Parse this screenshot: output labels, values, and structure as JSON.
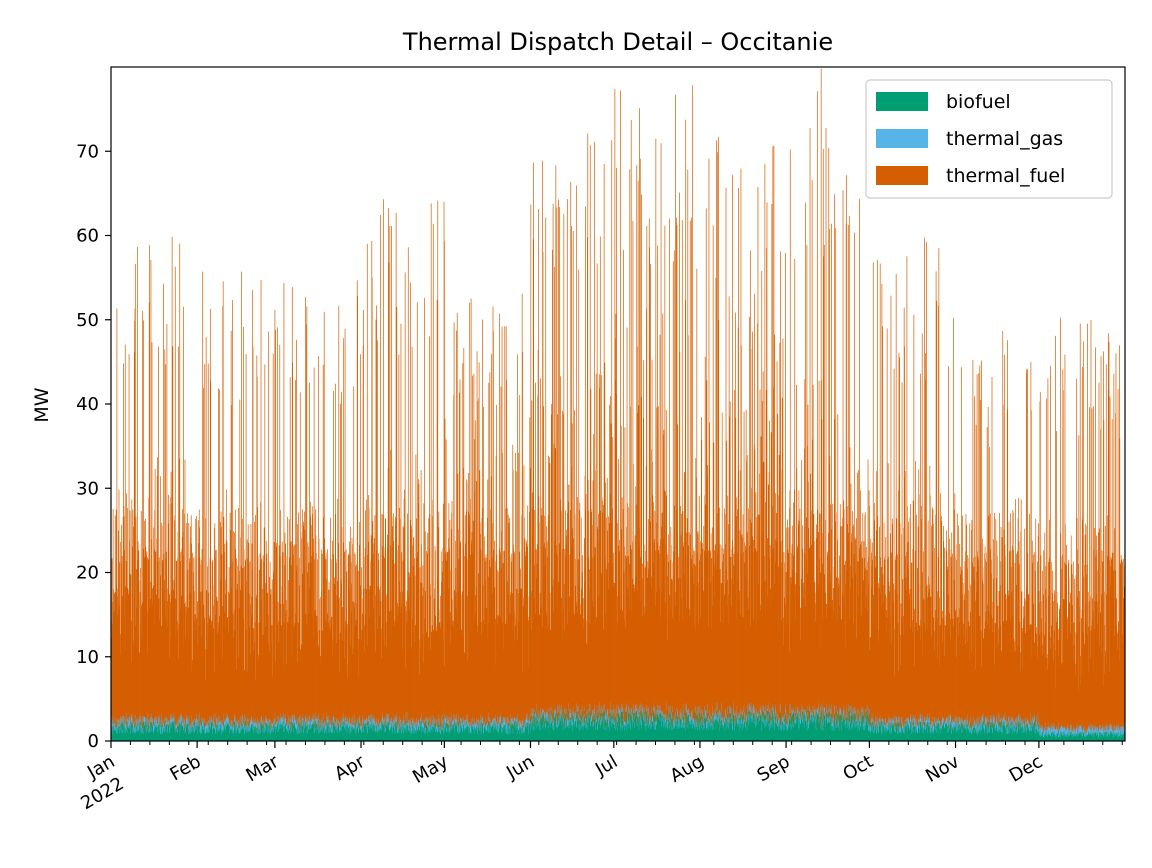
{
  "chart_data": {
    "type": "bar",
    "title": "Thermal Dispatch Detail – Occitanie",
    "xlabel": "",
    "ylabel": "MW",
    "x_start": "2022-01-01",
    "x_end": "2022-12-31",
    "xlim": [
      "2022-01-01",
      "2022-12-31"
    ],
    "ylim": [
      0,
      80
    ],
    "yticks": [
      0,
      10,
      20,
      30,
      40,
      50,
      60,
      70
    ],
    "xticks": [
      {
        "date": "2022-01-01",
        "label": "Jan",
        "label2": "2022"
      },
      {
        "date": "2022-02-01",
        "label": "Feb"
      },
      {
        "date": "2022-03-01",
        "label": "Mar"
      },
      {
        "date": "2022-04-01",
        "label": "Apr"
      },
      {
        "date": "2022-05-01",
        "label": "May"
      },
      {
        "date": "2022-06-01",
        "label": "Jun"
      },
      {
        "date": "2022-07-01",
        "label": "Jul"
      },
      {
        "date": "2022-08-01",
        "label": "Aug"
      },
      {
        "date": "2022-09-01",
        "label": "Sep"
      },
      {
        "date": "2022-10-01",
        "label": "Oct"
      },
      {
        "date": "2022-11-01",
        "label": "Nov"
      },
      {
        "date": "2022-12-01",
        "label": "Dec"
      }
    ],
    "grid": false,
    "stacked": true,
    "legend": {
      "position": "top-right",
      "entries": [
        "biofuel",
        "thermal_gas",
        "thermal_fuel"
      ]
    },
    "series": [
      {
        "name": "biofuel",
        "color": "#009E73",
        "monthly_typical_level": [
          2,
          2,
          2,
          2,
          2,
          3,
          3,
          3,
          3,
          2,
          2,
          1
        ],
        "monthly_peak_level": [
          3,
          3,
          3,
          3,
          3,
          4,
          4,
          4,
          4,
          3,
          3,
          2
        ]
      },
      {
        "name": "thermal_gas",
        "color": "#56B4E9",
        "monthly_typical_level": [
          1,
          1,
          1,
          1,
          1,
          1,
          1,
          1,
          1,
          1,
          1,
          1
        ],
        "monthly_peak_level": [
          2,
          2,
          2,
          2,
          2,
          2,
          2,
          2,
          2,
          2,
          2,
          2
        ]
      },
      {
        "name": "thermal_fuel",
        "color": "#D55E00",
        "monthly_typical_level": [
          25,
          22,
          21,
          25,
          28,
          35,
          38,
          38,
          33,
          25,
          22,
          20
        ],
        "monthly_peak_level": [
          58,
          54,
          53,
          63,
          51,
          70,
          76,
          69,
          76,
          57,
          47,
          49
        ]
      }
    ]
  }
}
